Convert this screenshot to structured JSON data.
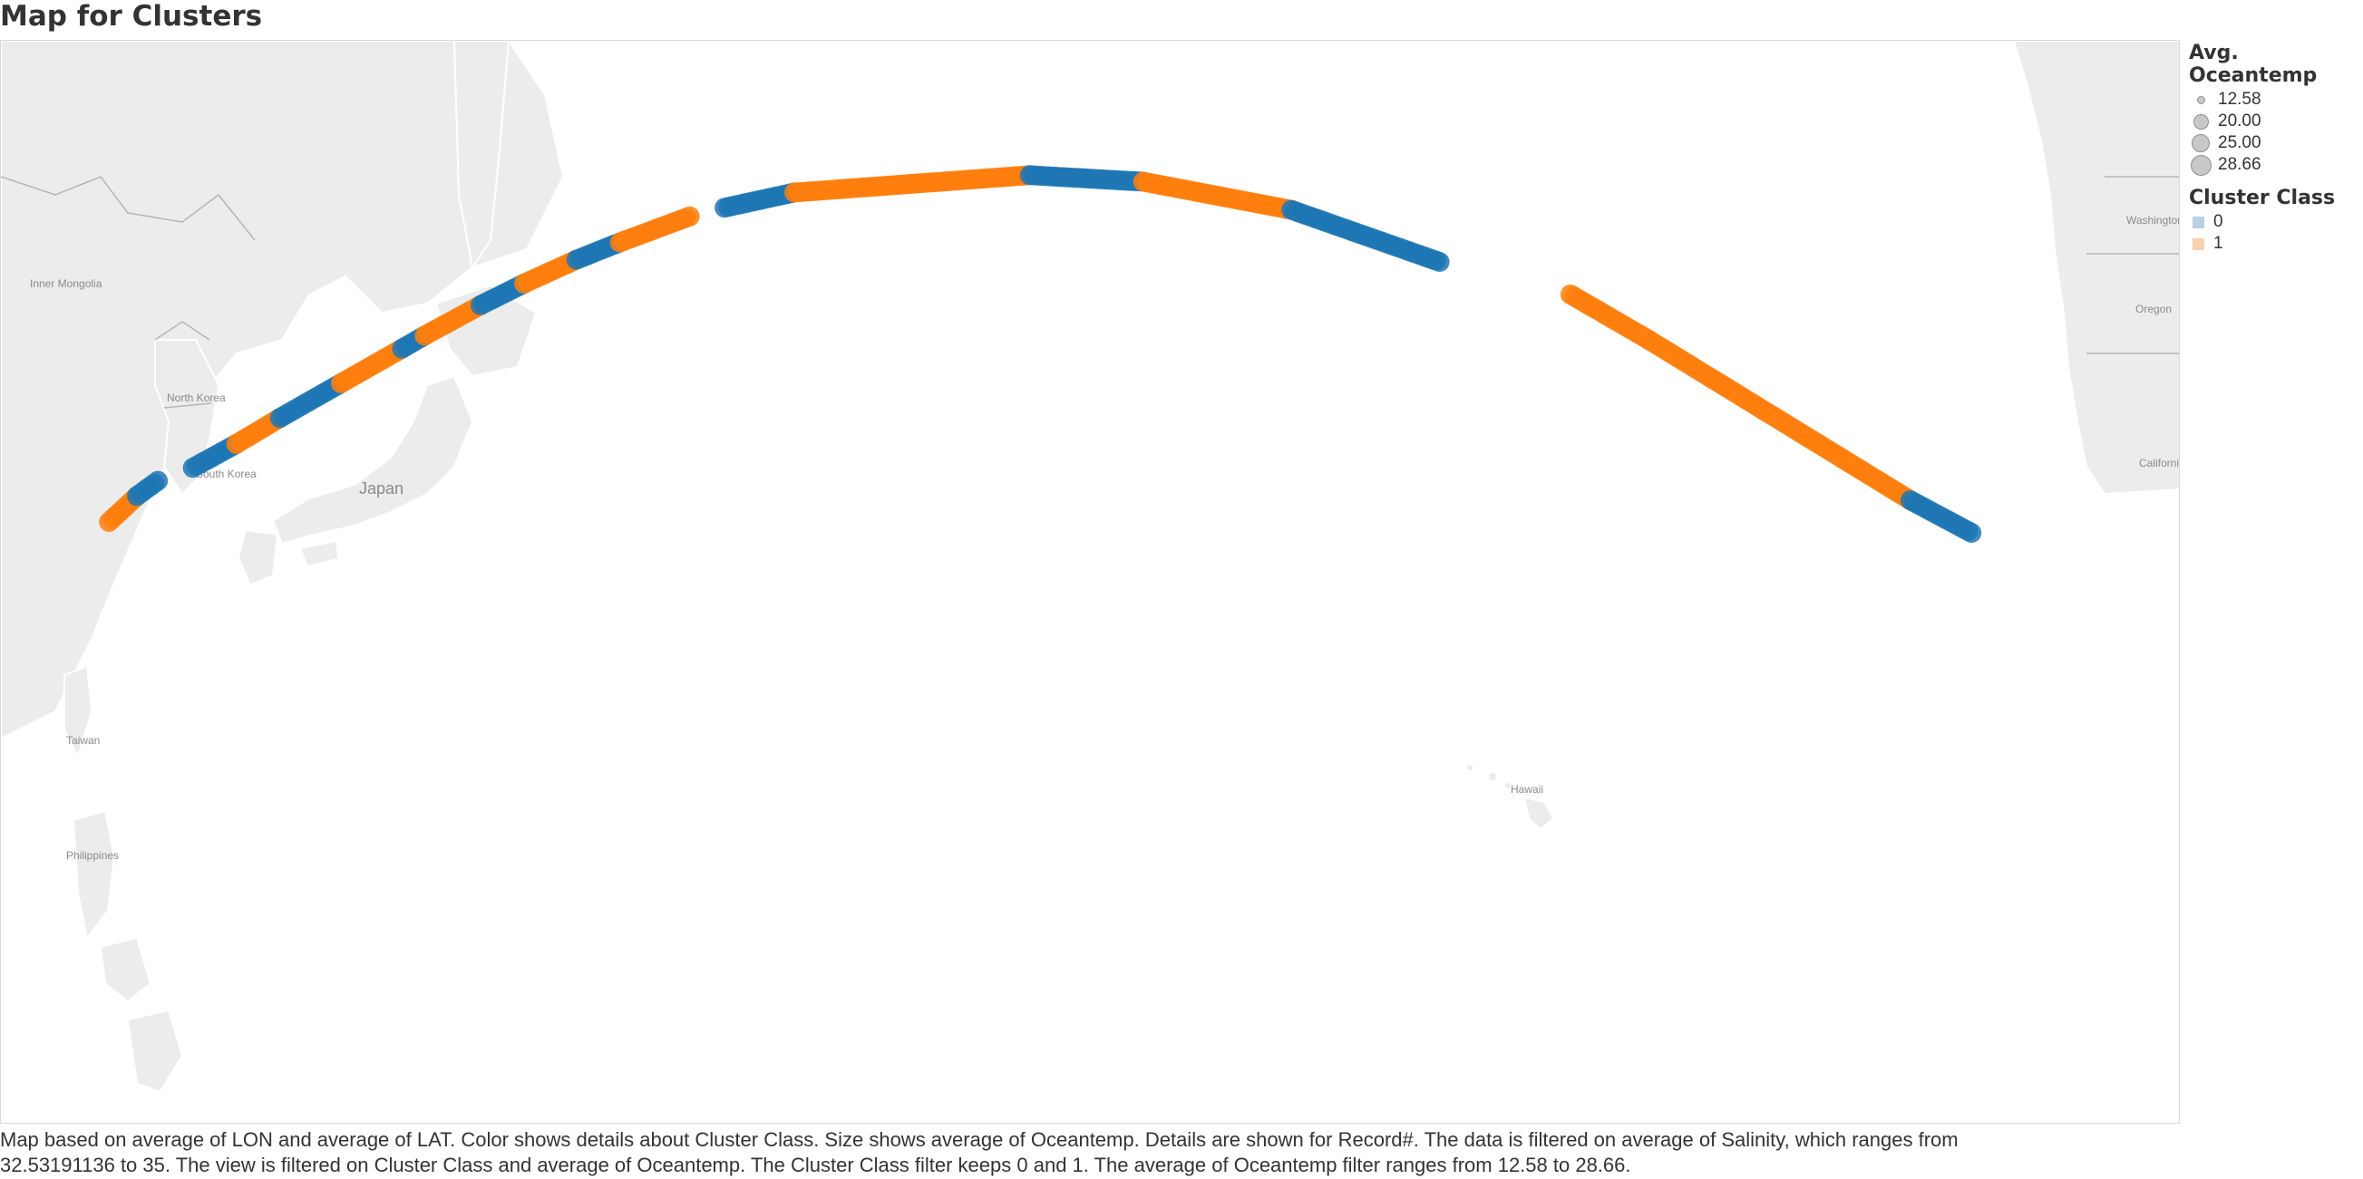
{
  "title": "Map for Clusters",
  "legend": {
    "size_title": "Avg. Oceantemp",
    "size_items": [
      {
        "label": "12.58",
        "value": 12.58
      },
      {
        "label": "20.00",
        "value": 20.0
      },
      {
        "label": "25.00",
        "value": 25.0
      },
      {
        "label": "28.66",
        "value": 28.66
      }
    ],
    "color_title": "Cluster Class",
    "color_items": [
      {
        "label": "0",
        "color": "#bcd0e3"
      },
      {
        "label": "1",
        "color": "#f9d2ac"
      }
    ]
  },
  "places": [
    "Inner Mongolia",
    "North Korea",
    "South Korea",
    "Japan",
    "Taiwan",
    "Philippines",
    "Hawaii",
    "Washington",
    "Oregon",
    "California"
  ],
  "colors": {
    "class_0": "#1f77b4",
    "class_1": "#ff7f0e",
    "land": "#ececec",
    "border": "#b5b5b5"
  },
  "chart_data": {
    "type": "scatter",
    "x_field": "average of LON",
    "y_field": "average of LAT",
    "color_field": "Cluster Class",
    "size_field": "Avg. Oceantemp",
    "track_segments": [
      {
        "class": "1",
        "lon": [
          121.2,
          122.8
        ],
        "lat": [
          25.8,
          27.0
        ]
      },
      {
        "class": "0",
        "lon": [
          122.8,
          124.0
        ],
        "lat": [
          27.0,
          27.7
        ]
      },
      {
        "class": "0",
        "lon": [
          126.0,
          128.5
        ],
        "lat": [
          28.3,
          29.4
        ]
      },
      {
        "class": "1",
        "lon": [
          128.5,
          131.0
        ],
        "lat": [
          29.4,
          30.6
        ]
      },
      {
        "class": "0",
        "lon": [
          131.0,
          134.5
        ],
        "lat": [
          30.6,
          32.2
        ]
      },
      {
        "class": "1",
        "lon": [
          134.5,
          138.0
        ],
        "lat": [
          32.2,
          33.8
        ]
      },
      {
        "class": "0",
        "lon": [
          138.0,
          139.3
        ],
        "lat": [
          33.8,
          34.4
        ]
      },
      {
        "class": "1",
        "lon": [
          139.3,
          142.5
        ],
        "lat": [
          34.4,
          35.8
        ]
      },
      {
        "class": "0",
        "lon": [
          142.5,
          145.0
        ],
        "lat": [
          35.8,
          36.8
        ]
      },
      {
        "class": "1",
        "lon": [
          145.0,
          148.0
        ],
        "lat": [
          36.8,
          37.9
        ]
      },
      {
        "class": "0",
        "lon": [
          148.0,
          150.5
        ],
        "lat": [
          37.9,
          38.7
        ]
      },
      {
        "class": "1",
        "lon": [
          150.5,
          154.5
        ],
        "lat": [
          38.7,
          39.9
        ]
      },
      {
        "class": "0",
        "lon": [
          156.5,
          160.5
        ],
        "lat": [
          40.3,
          41.0
        ]
      },
      {
        "class": "1",
        "lon": [
          160.5,
          174.0
        ],
        "lat": [
          41.0,
          41.8
        ]
      },
      {
        "class": "0",
        "lon": [
          174.0,
          180.5
        ],
        "lat": [
          41.8,
          41.5
        ]
      },
      {
        "class": "1",
        "lon": [
          180.5,
          189.0
        ],
        "lat": [
          41.5,
          40.2
        ]
      },
      {
        "class": "0",
        "lon": [
          189.0,
          197.5
        ],
        "lat": [
          40.2,
          37.8
        ]
      },
      {
        "class": "1",
        "lon": [
          205.0,
          209.5
        ],
        "lat": [
          36.3,
          34.2
        ]
      },
      {
        "class": "1",
        "lon": [
          209.5,
          224.5
        ],
        "lat": [
          34.2,
          26.8
        ]
      },
      {
        "class": "0",
        "lon": [
          224.5,
          228.0
        ],
        "lat": [
          26.8,
          25.3
        ]
      }
    ],
    "xlim": [
      115,
      240
    ],
    "ylim": [
      -2,
      48
    ]
  },
  "caption_line1": "Map based on average of LON and average of LAT.  Color shows details about Cluster Class.  Size shows average of Oceantemp.  Details are shown for Record#. The data is filtered on average of Salinity, which ranges from",
  "caption_line2": "32.53191136 to 35. The view is filtered on Cluster Class and average of Oceantemp. The Cluster Class filter keeps 0 and 1. The average of Oceantemp filter ranges from 12.58 to 28.66."
}
